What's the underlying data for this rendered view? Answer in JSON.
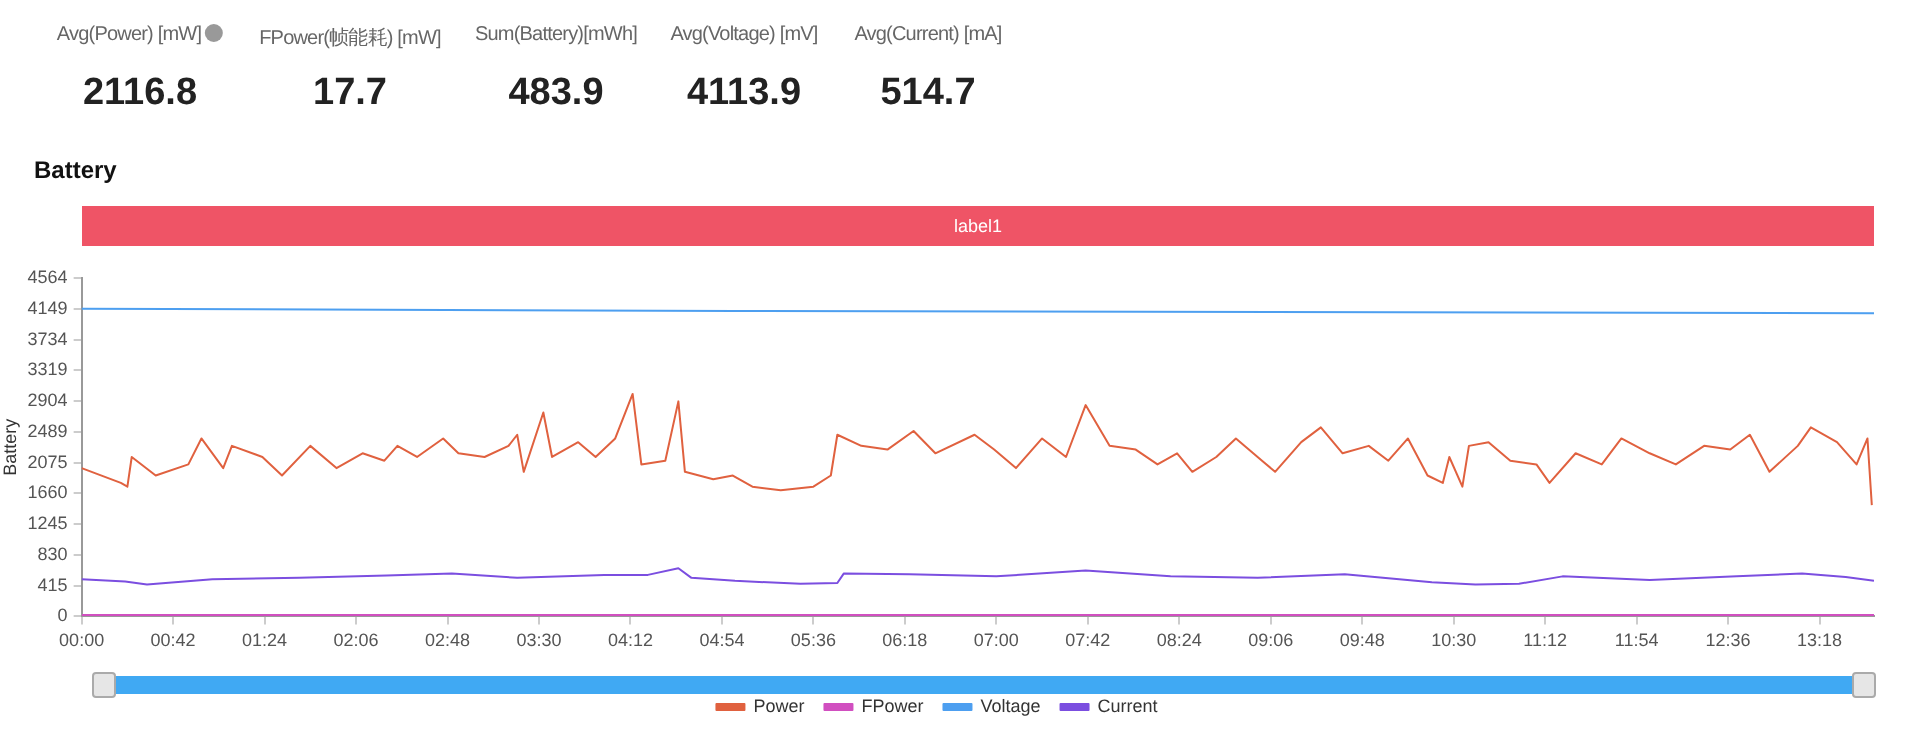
{
  "chart_data": {
    "type": "line",
    "title": "Battery",
    "ylabel": "Battery",
    "annotations": [
      "Avg(Power) [mW]",
      "2116.8",
      "FPower(帧能耗) [mW]",
      "17.7",
      "Sum(Battery)[mWh]",
      "483.9",
      "Avg(Voltage) [mV]",
      "4113.9",
      "Avg(Current) [mA]",
      "514.7",
      "label1"
    ],
    "xlim": [
      0,
      823
    ],
    "xticks": [
      {
        "value": 0,
        "label": "00:00"
      },
      {
        "value": 42,
        "label": "00:42"
      },
      {
        "value": 84,
        "label": "01:24"
      },
      {
        "value": 126,
        "label": "02:06"
      },
      {
        "value": 168,
        "label": "02:48"
      },
      {
        "value": 210,
        "label": "03:30"
      },
      {
        "value": 252,
        "label": "04:12"
      },
      {
        "value": 294,
        "label": "04:54"
      },
      {
        "value": 336,
        "label": "05:36"
      },
      {
        "value": 378,
        "label": "06:18"
      },
      {
        "value": 420,
        "label": "07:00"
      },
      {
        "value": 462,
        "label": "07:42"
      },
      {
        "value": 504,
        "label": "08:24"
      },
      {
        "value": 546,
        "label": "09:06"
      },
      {
        "value": 588,
        "label": "09:48"
      },
      {
        "value": 630,
        "label": "10:30"
      },
      {
        "value": 672,
        "label": "11:12"
      },
      {
        "value": 714,
        "label": "11:54"
      },
      {
        "value": 756,
        "label": "12:36"
      },
      {
        "value": 798,
        "label": "13:18"
      }
    ],
    "ylim": [
      0,
      4564
    ],
    "yticks": [
      0,
      415,
      830,
      1245,
      1660,
      2075,
      2489,
      2904,
      3319,
      3734,
      4149,
      4564
    ],
    "legend": "bottom",
    "marker": "none",
    "series": [
      {
        "name": "Power",
        "color": "#e0613f",
        "x": [
          0,
          18,
          21,
          23,
          34,
          49,
          55,
          65,
          69,
          83,
          92,
          105,
          117,
          129,
          139,
          145,
          154,
          166,
          173,
          185,
          196,
          200,
          203,
          212,
          216,
          228,
          236,
          245,
          253,
          257,
          268,
          274,
          277,
          290,
          299,
          308,
          321,
          336,
          344,
          347,
          358,
          370,
          382,
          392,
          410,
          419,
          429,
          441,
          452,
          461,
          472,
          484,
          494,
          503,
          510,
          521,
          530,
          542,
          548,
          560,
          569,
          579,
          591,
          600,
          609,
          618,
          625,
          628,
          634,
          637,
          646,
          656,
          668,
          674,
          686,
          698,
          707,
          720,
          732,
          745,
          757,
          766,
          775,
          788,
          794,
          806,
          815,
          820,
          822
        ],
        "values": [
          2000,
          1800,
          1750,
          2150,
          1900,
          2050,
          2400,
          2000,
          2300,
          2150,
          1900,
          2300,
          2000,
          2200,
          2100,
          2300,
          2150,
          2400,
          2200,
          2150,
          2300,
          2450,
          1950,
          2750,
          2150,
          2350,
          2150,
          2400,
          3000,
          2050,
          2100,
          2900,
          1950,
          1850,
          1900,
          1750,
          1700,
          1750,
          1900,
          2450,
          2300,
          2250,
          2500,
          2200,
          2450,
          2250,
          2000,
          2400,
          2150,
          2850,
          2300,
          2250,
          2050,
          2200,
          1950,
          2150,
          2400,
          2100,
          1950,
          2350,
          2550,
          2200,
          2300,
          2100,
          2400,
          1900,
          1800,
          2150,
          1750,
          2300,
          2350,
          2100,
          2050,
          1800,
          2200,
          2050,
          2400,
          2200,
          2050,
          2300,
          2250,
          2450,
          1950,
          2300,
          2550,
          2350,
          2050,
          2400,
          1500
        ]
      },
      {
        "name": "FPower",
        "color": "#d14fc0",
        "x": [
          0,
          823
        ],
        "values": [
          20,
          20
        ]
      },
      {
        "name": "Voltage",
        "color": "#4d9ff0",
        "x": [
          0,
          300,
          823
        ],
        "values": [
          4150,
          4120,
          4090
        ]
      },
      {
        "name": "Current",
        "color": "#7b4ee0",
        "x": [
          0,
          20,
          30,
          60,
          100,
          140,
          170,
          200,
          240,
          260,
          274,
          280,
          300,
          330,
          347,
          350,
          380,
          420,
          461,
          500,
          540,
          580,
          620,
          640,
          660,
          680,
          720,
          760,
          790,
          810,
          823
        ],
        "values": [
          500,
          470,
          430,
          500,
          520,
          550,
          580,
          520,
          560,
          560,
          650,
          520,
          480,
          440,
          450,
          580,
          570,
          540,
          620,
          540,
          520,
          570,
          460,
          430,
          440,
          540,
          490,
          540,
          580,
          530,
          480
        ]
      }
    ]
  }
}
